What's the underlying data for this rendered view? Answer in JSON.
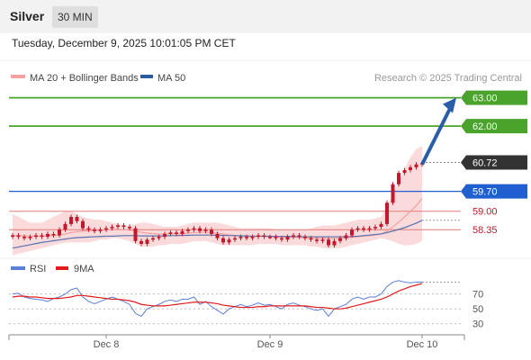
{
  "header": {
    "title": "Silver",
    "interval": "30 MIN"
  },
  "timestamp": "Tuesday, December 9, 2025 10:01:05 PM CET",
  "colors": {
    "candle": "#c2182b",
    "bollinger_fill": "#f9d4d4",
    "ma20": "#f6a0a0",
    "ma50": "#5672b0",
    "resistance": "#4aa32b",
    "support": "#e07b7b",
    "pivot": "#1f5fcf",
    "current": "#333333",
    "arrow": "#2a5da8",
    "rsi": "#5b7ed6",
    "rsi_ma": "#e01c1c"
  },
  "chart_data": [
    {
      "type": "candlestick",
      "title": "",
      "legend": [
        {
          "name": "MA 20 + Bollinger Bands",
          "color": "#f6a0a0"
        },
        {
          "name": "MA 50",
          "color": "#2c5aa0"
        }
      ],
      "source": "Research © 2025 Trading Central",
      "ylim": [
        57.5,
        63.4
      ],
      "x_ticks": [
        "Dec 8",
        "Dec 9",
        "Dec 10"
      ],
      "x_tick_positions": [
        16,
        44,
        70
      ],
      "n_bars": 71,
      "levels": [
        {
          "value": 63.0,
          "label": "63.00",
          "kind": "resistance"
        },
        {
          "value": 62.0,
          "label": "62.00",
          "kind": "resistance"
        },
        {
          "value": 60.72,
          "label": "60.72",
          "kind": "current"
        },
        {
          "value": 59.7,
          "label": "59.70",
          "kind": "pivot"
        },
        {
          "value": 59.0,
          "label": "59.00",
          "kind": "support"
        },
        {
          "value": 58.35,
          "label": "58.35",
          "kind": "support"
        }
      ],
      "forecast_arrow": {
        "from": 60.65,
        "to": 63.0
      },
      "close": [
        58.15,
        58.1,
        58.05,
        58.1,
        58.15,
        58.1,
        58.2,
        58.15,
        58.35,
        58.55,
        58.8,
        58.65,
        58.4,
        58.35,
        58.3,
        58.35,
        58.4,
        58.45,
        58.5,
        58.45,
        58.4,
        57.95,
        57.85,
        58.0,
        58.05,
        58.1,
        58.2,
        58.25,
        58.2,
        58.3,
        58.35,
        58.4,
        58.3,
        58.35,
        58.2,
        58.05,
        57.9,
        58.0,
        58.05,
        58.1,
        58.05,
        58.1,
        58.15,
        58.1,
        58.1,
        58.05,
        58.0,
        58.1,
        58.15,
        58.1,
        58.05,
        58.0,
        57.95,
        58.0,
        57.8,
        57.95,
        58.05,
        58.15,
        58.35,
        58.4,
        58.35,
        58.4,
        58.45,
        58.55,
        59.3,
        59.95,
        60.35,
        60.45,
        60.55,
        60.65,
        60.7
      ],
      "bollinger_upper": [
        58.9,
        58.8,
        58.7,
        58.6,
        58.6,
        58.6,
        58.7,
        58.8,
        58.9,
        59.0,
        59.0,
        58.9,
        58.8,
        58.75,
        58.7,
        58.7,
        58.65,
        58.6,
        58.55,
        58.5,
        58.5,
        58.55,
        58.6,
        58.6,
        58.55,
        58.5,
        58.45,
        58.45,
        58.45,
        58.5,
        58.55,
        58.6,
        58.6,
        58.6,
        58.6,
        58.6,
        58.55,
        58.5,
        58.45,
        58.4,
        58.4,
        58.4,
        58.4,
        58.4,
        58.4,
        58.35,
        58.35,
        58.35,
        58.35,
        58.35,
        58.35,
        58.4,
        58.45,
        58.5,
        58.5,
        58.5,
        58.55,
        58.6,
        58.65,
        58.7,
        58.7,
        58.7,
        58.75,
        58.8,
        59.2,
        59.6,
        60.0,
        60.5,
        60.9,
        61.2,
        61.3
      ],
      "bollinger_lower": [
        57.45,
        57.5,
        57.55,
        57.6,
        57.65,
        57.7,
        57.75,
        57.8,
        57.85,
        57.9,
        57.9,
        57.9,
        57.9,
        57.9,
        57.95,
        58.0,
        58.0,
        58.05,
        58.05,
        58.0,
        57.95,
        57.85,
        57.75,
        57.75,
        57.75,
        57.8,
        57.8,
        57.85,
        57.85,
        57.85,
        57.9,
        57.95,
        57.95,
        57.95,
        57.9,
        57.85,
        57.8,
        57.8,
        57.8,
        57.8,
        57.8,
        57.8,
        57.85,
        57.85,
        57.85,
        57.85,
        57.8,
        57.8,
        57.8,
        57.8,
        57.8,
        57.75,
        57.75,
        57.7,
        57.7,
        57.7,
        57.7,
        57.75,
        57.8,
        57.85,
        57.9,
        57.95,
        58.0,
        58.05,
        58.0,
        57.95,
        57.85,
        57.8,
        57.8,
        57.85,
        57.95
      ],
      "ma20": [
        58.15,
        58.14,
        58.13,
        58.12,
        58.12,
        58.12,
        58.13,
        58.14,
        58.16,
        58.2,
        58.25,
        58.28,
        58.3,
        58.31,
        58.32,
        58.33,
        58.34,
        58.35,
        58.36,
        58.35,
        58.34,
        58.3,
        58.26,
        58.23,
        58.21,
        58.2,
        58.2,
        58.2,
        58.2,
        58.21,
        58.23,
        58.25,
        58.26,
        58.26,
        58.25,
        58.23,
        58.2,
        58.17,
        58.15,
        58.13,
        58.12,
        58.11,
        58.11,
        58.11,
        58.11,
        58.1,
        58.09,
        58.09,
        58.09,
        58.08,
        58.07,
        58.06,
        58.05,
        58.05,
        58.04,
        58.04,
        58.05,
        58.06,
        58.08,
        58.1,
        58.12,
        58.14,
        58.16,
        58.2,
        58.3,
        58.45,
        58.62,
        58.8,
        59.0,
        59.2,
        59.45
      ],
      "ma50": [
        57.7,
        57.74,
        57.78,
        57.82,
        57.86,
        57.9,
        57.93,
        57.96,
        57.99,
        58.02,
        58.05,
        58.07,
        58.08,
        58.09,
        58.1,
        58.11,
        58.12,
        58.12,
        58.13,
        58.14,
        58.14,
        58.14,
        58.13,
        58.13,
        58.13,
        58.13,
        58.13,
        58.14,
        58.14,
        58.15,
        58.15,
        58.16,
        58.16,
        58.16,
        58.16,
        58.15,
        58.15,
        58.14,
        58.14,
        58.13,
        58.13,
        58.12,
        58.12,
        58.12,
        58.12,
        58.11,
        58.11,
        58.11,
        58.11,
        58.1,
        58.1,
        58.1,
        58.1,
        58.1,
        58.1,
        58.1,
        58.1,
        58.1,
        58.11,
        58.12,
        58.14,
        58.16,
        58.18,
        58.2,
        58.25,
        58.3,
        58.36,
        58.42,
        58.5,
        58.58,
        58.68
      ]
    },
    {
      "type": "line",
      "title": "",
      "legend": [
        {
          "name": "RSI",
          "color": "#5b7ed6"
        },
        {
          "name": "9MA",
          "color": "#e01c1c"
        }
      ],
      "ylim": [
        20,
        95
      ],
      "y_ticks": [
        70,
        50,
        30
      ],
      "rsi": [
        70,
        71,
        66,
        64,
        63,
        62,
        60,
        64,
        66,
        70,
        76,
        78,
        66,
        60,
        57,
        60,
        63,
        66,
        63,
        60,
        56,
        44,
        40,
        50,
        53,
        56,
        60,
        62,
        60,
        63,
        63,
        66,
        56,
        60,
        53,
        48,
        43,
        50,
        53,
        56,
        53,
        55,
        58,
        55,
        56,
        53,
        50,
        56,
        58,
        55,
        53,
        50,
        48,
        50,
        40,
        50,
        53,
        56,
        63,
        66,
        63,
        66,
        66,
        70,
        80,
        86,
        88,
        86,
        85,
        86,
        86
      ],
      "rsi_ma": [
        66,
        67,
        67,
        66,
        66,
        65,
        64,
        64,
        64,
        65,
        66,
        68,
        68,
        67,
        66,
        65,
        64,
        63,
        63,
        62,
        61,
        59,
        56,
        55,
        54,
        54,
        54,
        55,
        56,
        57,
        58,
        59,
        59,
        59,
        58,
        57,
        55,
        54,
        53,
        52,
        52,
        52,
        53,
        53,
        54,
        54,
        54,
        54,
        54,
        54,
        54,
        53,
        52,
        52,
        51,
        50,
        50,
        51,
        53,
        55,
        57,
        59,
        61,
        63,
        66,
        70,
        74,
        77,
        80,
        82,
        84
      ]
    }
  ]
}
